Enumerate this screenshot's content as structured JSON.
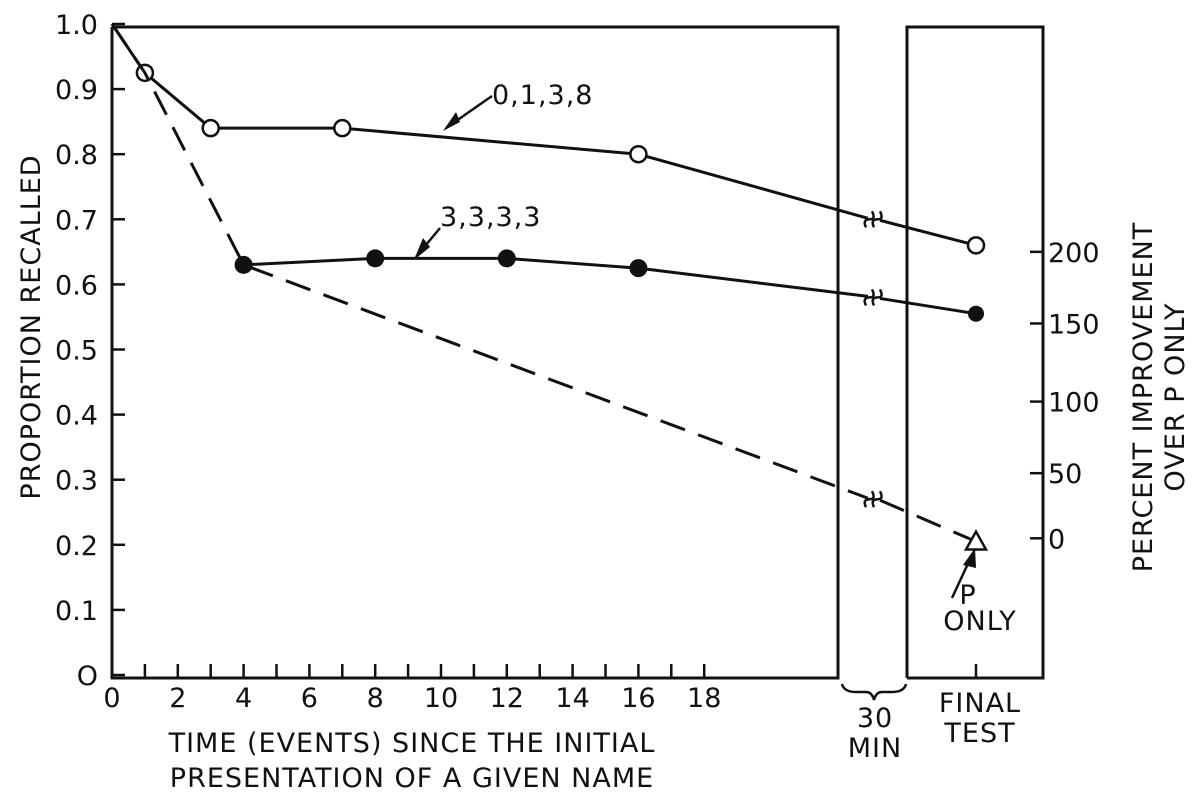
{
  "chart_data": {
    "type": "line",
    "ylabel": "PROPORTION RECALLED",
    "ylabel_right_line1": "PERCENT IMPROVEMENT",
    "ylabel_right_line2": "OVER P ONLY",
    "xlabel_line1": "TIME (EVENTS) SINCE THE INITIAL",
    "xlabel_line2": "PRESENTATION OF A GIVEN NAME",
    "xlim": [
      0,
      22.5
    ],
    "ylim": [
      0,
      1.0
    ],
    "x_ticks": [
      0,
      2,
      4,
      6,
      8,
      10,
      12,
      14,
      16,
      18
    ],
    "x_tick_labels": [
      "0",
      "2",
      "4",
      "6",
      "8",
      "10",
      "12",
      "14",
      "16",
      "18"
    ],
    "y_ticks": [
      0,
      0.1,
      0.2,
      0.3,
      0.4,
      0.5,
      0.6,
      0.7,
      0.8,
      0.9,
      1.0
    ],
    "y_tick_labels": [
      "O",
      "0.1",
      "0.2",
      "0.3",
      "0.4",
      "0.5",
      "0.6",
      "0.7",
      "0.8",
      "0.9",
      "1.0"
    ],
    "right_ticks": [
      {
        "y": 0.21,
        "label": "0"
      },
      {
        "y": 0.31,
        "label": "50"
      },
      {
        "y": 0.42,
        "label": "100"
      },
      {
        "y": 0.54,
        "label": "150"
      },
      {
        "y": 0.65,
        "label": "200"
      }
    ],
    "section_30min_line1": "30",
    "section_30min_line2": "MIN",
    "section_final_line1": "FINAL",
    "section_final_line2": "TEST",
    "series": [
      {
        "name": "0,1,3,8",
        "marker": "open-circle",
        "style": "solid",
        "x": [
          0,
          1,
          3,
          7,
          16
        ],
        "y": [
          1.0,
          0.925,
          0.84,
          0.84,
          0.8
        ],
        "break_y": 0.7,
        "final": 0.66
      },
      {
        "name": "3,3,3,3",
        "marker": "filled-circle",
        "style": "solid",
        "x": [
          4,
          8,
          12,
          16
        ],
        "y": [
          0.63,
          0.64,
          0.64,
          0.625
        ],
        "break_y": 0.58,
        "final": 0.555
      },
      {
        "name": "",
        "marker": "none",
        "style": "dashed",
        "x": [
          0,
          1,
          4
        ],
        "y": [
          1.0,
          0.925,
          0.63
        ],
        "break_y": 0.27,
        "final": 0.205
      }
    ],
    "annotations": [
      {
        "text": "0,1,3,8"
      },
      {
        "text": "3,3,3,3"
      },
      {
        "text_line1": "P",
        "text_line2": "ONLY"
      }
    ]
  }
}
